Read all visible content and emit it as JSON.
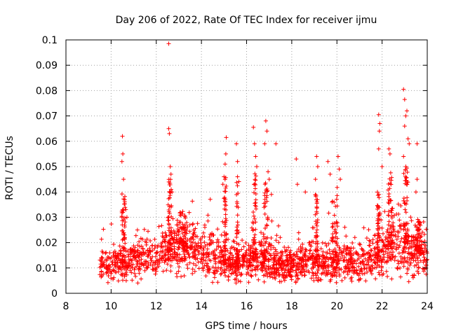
{
  "chart_data": {
    "type": "scatter",
    "marker": "+",
    "color": "#ff0000",
    "title": "Day 206 of 2022, Rate Of TEC Index for receiver ijmu",
    "xlabel": "GPS time / hours",
    "ylabel": "ROTI / TECUs",
    "xlim": [
      8,
      24
    ],
    "ylim": [
      0,
      0.1
    ],
    "grid": true,
    "x_ticks": [
      8,
      10,
      12,
      14,
      16,
      18,
      20,
      22,
      24
    ],
    "y_ticks": [
      0,
      0.01,
      0.02,
      0.03,
      0.04,
      0.05,
      0.06,
      0.07,
      0.08,
      0.09,
      0.1
    ],
    "x_tick_labels": [
      "8",
      "10",
      "12",
      "14",
      "16",
      "18",
      "20",
      "22",
      "24"
    ],
    "y_tick_labels": [
      "0",
      "0.01",
      "0.02",
      "0.03",
      "0.04",
      "0.05",
      "0.06",
      "0.07",
      "0.08",
      "0.09",
      "0.1"
    ],
    "data_start_hour": 9.5,
    "data_end_hour": 24,
    "baseline_profile": {
      "x": [
        9.5,
        10.0,
        10.5,
        11.0,
        11.5,
        12.0,
        12.5,
        13.0,
        13.5,
        14.0,
        14.5,
        15.0,
        15.5,
        16.0,
        16.5,
        17.0,
        17.5,
        18.0,
        18.5,
        19.0,
        19.5,
        20.0,
        20.5,
        21.0,
        21.5,
        22.0,
        22.5,
        23.0,
        23.5,
        24.0
      ],
      "y": [
        0.012,
        0.011,
        0.012,
        0.013,
        0.014,
        0.014,
        0.016,
        0.019,
        0.018,
        0.015,
        0.014,
        0.012,
        0.011,
        0.013,
        0.013,
        0.012,
        0.011,
        0.011,
        0.012,
        0.012,
        0.012,
        0.012,
        0.012,
        0.012,
        0.013,
        0.015,
        0.02,
        0.02,
        0.017,
        0.014
      ]
    },
    "spikes": [
      {
        "x": 10.5,
        "y": 0.062
      },
      {
        "x": 10.52,
        "y": 0.055
      },
      {
        "x": 10.48,
        "y": 0.052
      },
      {
        "x": 10.55,
        "y": 0.045
      },
      {
        "x": 10.6,
        "y": 0.037
      },
      {
        "x": 10.65,
        "y": 0.033
      },
      {
        "x": 10.7,
        "y": 0.03
      },
      {
        "x": 12.55,
        "y": 0.0985
      },
      {
        "x": 12.55,
        "y": 0.065
      },
      {
        "x": 12.58,
        "y": 0.063
      },
      {
        "x": 12.62,
        "y": 0.05
      },
      {
        "x": 12.65,
        "y": 0.047
      },
      {
        "x": 12.7,
        "y": 0.04
      },
      {
        "x": 15.1,
        "y": 0.0615
      },
      {
        "x": 15.08,
        "y": 0.055
      },
      {
        "x": 15.05,
        "y": 0.051
      },
      {
        "x": 15.0,
        "y": 0.046
      },
      {
        "x": 14.95,
        "y": 0.043
      },
      {
        "x": 15.55,
        "y": 0.059
      },
      {
        "x": 15.6,
        "y": 0.052
      },
      {
        "x": 15.6,
        "y": 0.046
      },
      {
        "x": 16.3,
        "y": 0.0655
      },
      {
        "x": 16.35,
        "y": 0.059
      },
      {
        "x": 16.4,
        "y": 0.054
      },
      {
        "x": 16.45,
        "y": 0.05
      },
      {
        "x": 16.85,
        "y": 0.068
      },
      {
        "x": 16.9,
        "y": 0.064
      },
      {
        "x": 16.8,
        "y": 0.059
      },
      {
        "x": 16.95,
        "y": 0.048
      },
      {
        "x": 17.0,
        "y": 0.045
      },
      {
        "x": 17.1,
        "y": 0.039
      },
      {
        "x": 17.3,
        "y": 0.059
      },
      {
        "x": 18.2,
        "y": 0.053
      },
      {
        "x": 18.25,
        "y": 0.043
      },
      {
        "x": 18.6,
        "y": 0.04
      },
      {
        "x": 19.1,
        "y": 0.054
      },
      {
        "x": 19.15,
        "y": 0.05
      },
      {
        "x": 19.05,
        "y": 0.045
      },
      {
        "x": 19.6,
        "y": 0.052
      },
      {
        "x": 19.7,
        "y": 0.047
      },
      {
        "x": 20.05,
        "y": 0.054
      },
      {
        "x": 20.1,
        "y": 0.049
      },
      {
        "x": 20.15,
        "y": 0.045
      },
      {
        "x": 21.85,
        "y": 0.0705
      },
      {
        "x": 21.9,
        "y": 0.067
      },
      {
        "x": 21.88,
        "y": 0.064
      },
      {
        "x": 21.85,
        "y": 0.057
      },
      {
        "x": 22.0,
        "y": 0.05
      },
      {
        "x": 22.3,
        "y": 0.057
      },
      {
        "x": 22.35,
        "y": 0.055
      },
      {
        "x": 22.95,
        "y": 0.0805
      },
      {
        "x": 23.0,
        "y": 0.0765
      },
      {
        "x": 23.1,
        "y": 0.072
      },
      {
        "x": 23.05,
        "y": 0.07
      },
      {
        "x": 23.0,
        "y": 0.066
      },
      {
        "x": 23.15,
        "y": 0.061
      },
      {
        "x": 23.2,
        "y": 0.059
      },
      {
        "x": 22.95,
        "y": 0.054
      },
      {
        "x": 23.05,
        "y": 0.05
      },
      {
        "x": 23.55,
        "y": 0.059
      },
      {
        "x": 23.55,
        "y": 0.045
      },
      {
        "x": 23.5,
        "y": 0.04
      }
    ],
    "plumes": [
      {
        "x": 10.55,
        "w": 0.15,
        "peak": 0.04
      },
      {
        "x": 12.6,
        "w": 0.15,
        "peak": 0.045
      },
      {
        "x": 13.2,
        "w": 0.3,
        "peak": 0.033
      },
      {
        "x": 15.05,
        "w": 0.12,
        "peak": 0.047
      },
      {
        "x": 15.6,
        "w": 0.12,
        "peak": 0.045
      },
      {
        "x": 16.35,
        "w": 0.15,
        "peak": 0.05
      },
      {
        "x": 16.85,
        "w": 0.2,
        "peak": 0.045
      },
      {
        "x": 19.1,
        "w": 0.12,
        "peak": 0.04
      },
      {
        "x": 19.9,
        "w": 0.25,
        "peak": 0.042
      },
      {
        "x": 21.85,
        "w": 0.12,
        "peak": 0.04
      },
      {
        "x": 22.35,
        "w": 0.2,
        "peak": 0.048
      },
      {
        "x": 23.05,
        "w": 0.2,
        "peak": 0.05
      },
      {
        "x": 23.6,
        "w": 0.2,
        "peak": 0.03
      }
    ]
  }
}
